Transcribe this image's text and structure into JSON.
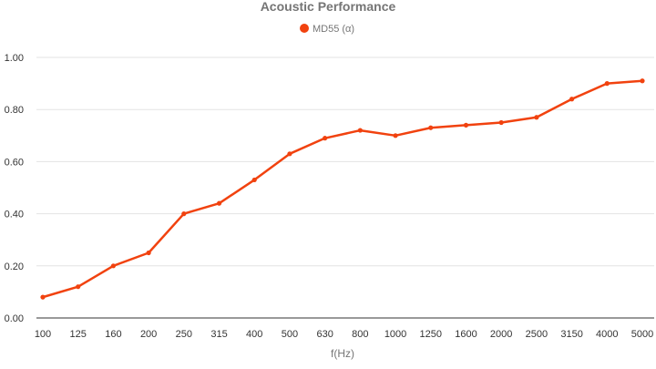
{
  "chart_data": {
    "type": "line",
    "title": "Acoustic Performance",
    "xlabel": "f(Hz)",
    "ylabel": "",
    "ylim": [
      0,
      1
    ],
    "yticks": [
      0,
      0.2,
      0.4,
      0.6,
      0.8,
      1.0
    ],
    "ytick_labels": [
      "0.00",
      "0.20",
      "0.40",
      "0.60",
      "0.80",
      "1.00"
    ],
    "grid": "horizontal",
    "legend_position": "top-center",
    "categories": [
      "100",
      "125",
      "160",
      "200",
      "250",
      "315",
      "400",
      "500",
      "630",
      "800",
      "1000",
      "1250",
      "1600",
      "2000",
      "2500",
      "3150",
      "4000",
      "5000"
    ],
    "series": [
      {
        "name": "MD55 (α)",
        "color": "#f1420f",
        "values": [
          0.08,
          0.12,
          0.2,
          0.25,
          0.4,
          0.44,
          0.53,
          0.63,
          0.69,
          0.72,
          0.7,
          0.73,
          0.74,
          0.75,
          0.77,
          0.84,
          0.9,
          0.91
        ]
      }
    ]
  }
}
